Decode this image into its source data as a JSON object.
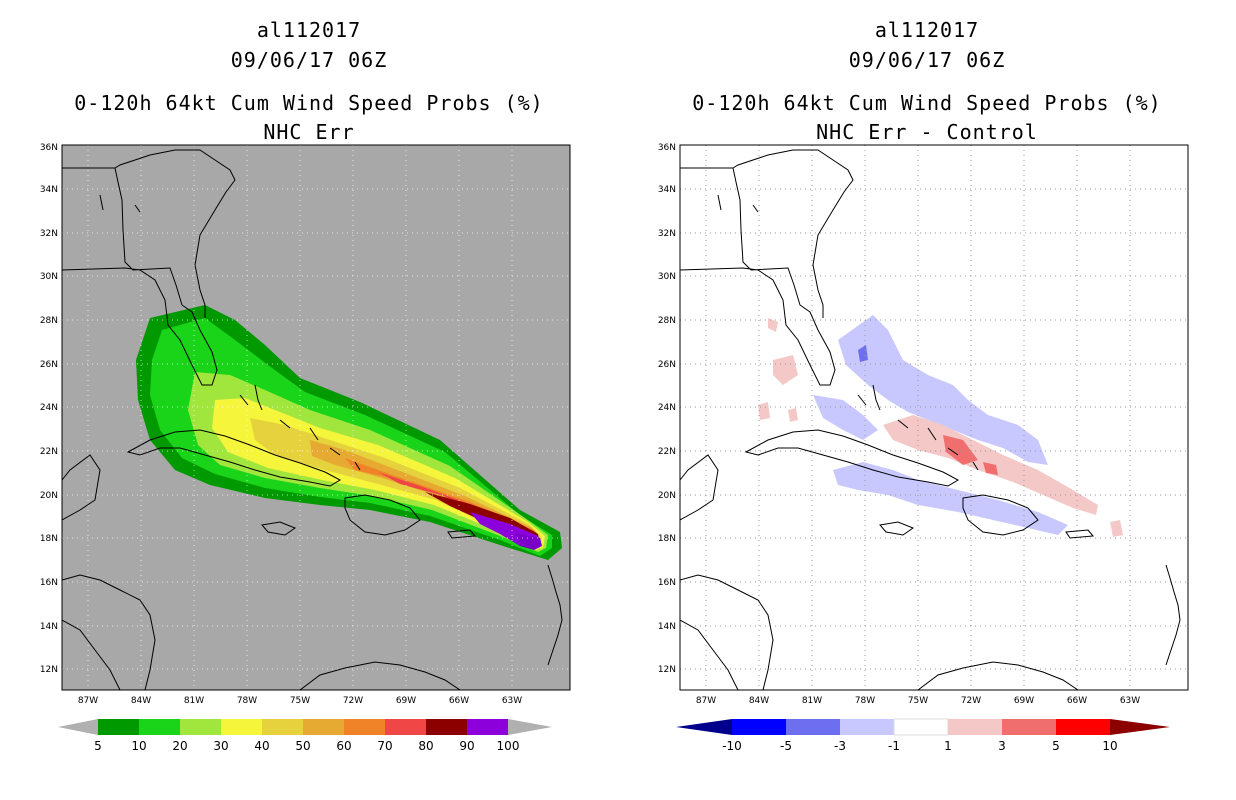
{
  "panels": [
    {
      "title_storm": "al112017",
      "title_time": "09/06/17 06Z",
      "title_product": "0-120h 64kt Cum Wind Speed Probs (%)",
      "title_sub": "NHC Err",
      "colorbar": {
        "labels": [
          "5",
          "10",
          "20",
          "30",
          "40",
          "50",
          "60",
          "70",
          "80",
          "90",
          "100"
        ],
        "colors": [
          "#b0b0b0",
          "#009900",
          "#19d419",
          "#a0e63c",
          "#f5f53c",
          "#e6d23c",
          "#e6aa32",
          "#f08228",
          "#f04646",
          "#8c0000",
          "#8c00dc",
          "#b0b0b0"
        ]
      }
    },
    {
      "title_storm": "al112017",
      "title_time": "09/06/17 06Z",
      "title_product": "0-120h 64kt Cum Wind Speed Probs (%)",
      "title_sub": "NHC Err - Control",
      "colorbar": {
        "labels": [
          "-10",
          "-5",
          "-3",
          "-1",
          "1",
          "3",
          "5",
          "10"
        ],
        "colors": [
          "#00008c",
          "#0000ff",
          "#6e6ef0",
          "#c8c8ff",
          "#ffffff",
          "#f5c8c8",
          "#f06e6e",
          "#ff0000",
          "#8c0000"
        ]
      }
    }
  ],
  "axes": {
    "lon_labels": [
      "87W",
      "84W",
      "81W",
      "78W",
      "75W",
      "72W",
      "69W",
      "66W",
      "63W"
    ],
    "lat_labels": [
      "12N",
      "14N",
      "16N",
      "18N",
      "20N",
      "22N",
      "24N",
      "26N",
      "28N",
      "30N",
      "32N",
      "34N",
      "36N"
    ],
    "lon_range": [
      -89,
      -60
    ],
    "lat_range": [
      11,
      36
    ]
  },
  "colors": {
    "ocean_left": "#a8a8a8",
    "land_left": "#a8a8a8",
    "ocean_right": "#ffffff",
    "coast": "#000000"
  }
}
